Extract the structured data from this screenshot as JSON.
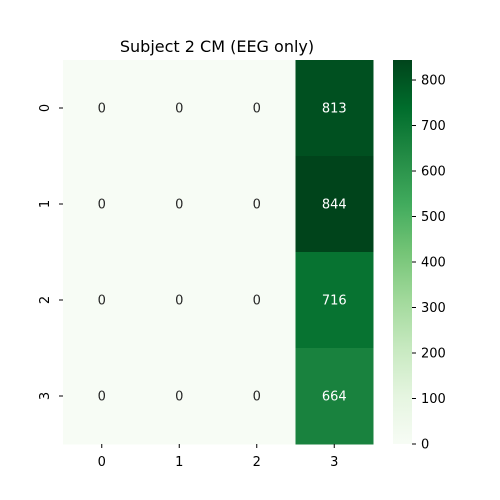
{
  "chart_data": {
    "type": "heatmap",
    "title": "Subject 2 CM (EEG only)",
    "xlabel": "",
    "ylabel": "",
    "x_categories": [
      "0",
      "1",
      "2",
      "3"
    ],
    "y_categories": [
      "0",
      "1",
      "2",
      "3"
    ],
    "values": [
      [
        0,
        0,
        0,
        813
      ],
      [
        0,
        0,
        0,
        844
      ],
      [
        0,
        0,
        0,
        716
      ],
      [
        0,
        0,
        0,
        664
      ]
    ],
    "colorbar": {
      "colormap": "Greens",
      "range": [
        0,
        844
      ],
      "ticks": [
        0,
        100,
        200,
        300,
        400,
        500,
        600,
        700,
        800
      ]
    },
    "grid": false,
    "annotations": true
  }
}
